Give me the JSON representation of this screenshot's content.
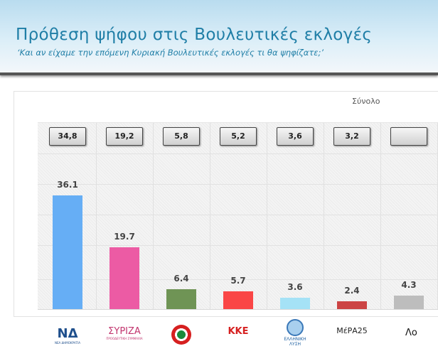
{
  "header": {
    "title": "Πρόθεση ψήφου στις Βουλευτικές εκλογές",
    "subtitle": "‘Και αν είχαμε την επόμενη Κυριακή Βουλευτικές εκλογές τι θα ψηφίζατε;’"
  },
  "chart_data": {
    "type": "bar",
    "title": "Σύνολο",
    "categories": [
      "ΝΔ",
      "ΣΥΡΙΖΑ",
      "ΠΑΣΟΚ",
      "ΚΚΕ",
      "Ελληνική Λύση",
      "ΜέΡΑ25",
      "Λο"
    ],
    "values": [
      36.1,
      19.7,
      6.4,
      5.7,
      3.6,
      2.4,
      4.3
    ],
    "previous_values": [
      "34,8",
      "19,2",
      "5,8",
      "5,2",
      "3,6",
      "3,2",
      ""
    ],
    "colors": [
      "#66aef5",
      "#ec5ba4",
      "#6f9455",
      "#fa4646",
      "#a5e2f6",
      "#cc4444",
      "#bdbdbd"
    ],
    "grid": true,
    "xlabel": "",
    "ylabel": ""
  },
  "logos": [
    {
      "main": "ΝΔ",
      "sub": "ΝΕΑ ΔΗΜΟΚΡΑΤΙΑ",
      "color": "#1f4f8c"
    },
    {
      "main": "ΣΥΡΙΖΑ",
      "sub": "ΠΡΟΟΔΕΥΤΙΚΗ ΣΥΜΜΑΧΙΑ",
      "color": "#c2356e"
    },
    {
      "main": "",
      "sub": "",
      "color": "#d62020"
    },
    {
      "main": "ΚΚΕ",
      "sub": "",
      "color": "#d62020"
    },
    {
      "main": "",
      "sub": "ΕΛΛΗΝΙΚΗ ΛΥΣΗ",
      "color": "#1b5ea0"
    },
    {
      "main": "ΜέΡΑ25",
      "sub": "",
      "color": "#222222"
    },
    {
      "main": "Λο",
      "sub": "",
      "color": "#111111"
    }
  ]
}
